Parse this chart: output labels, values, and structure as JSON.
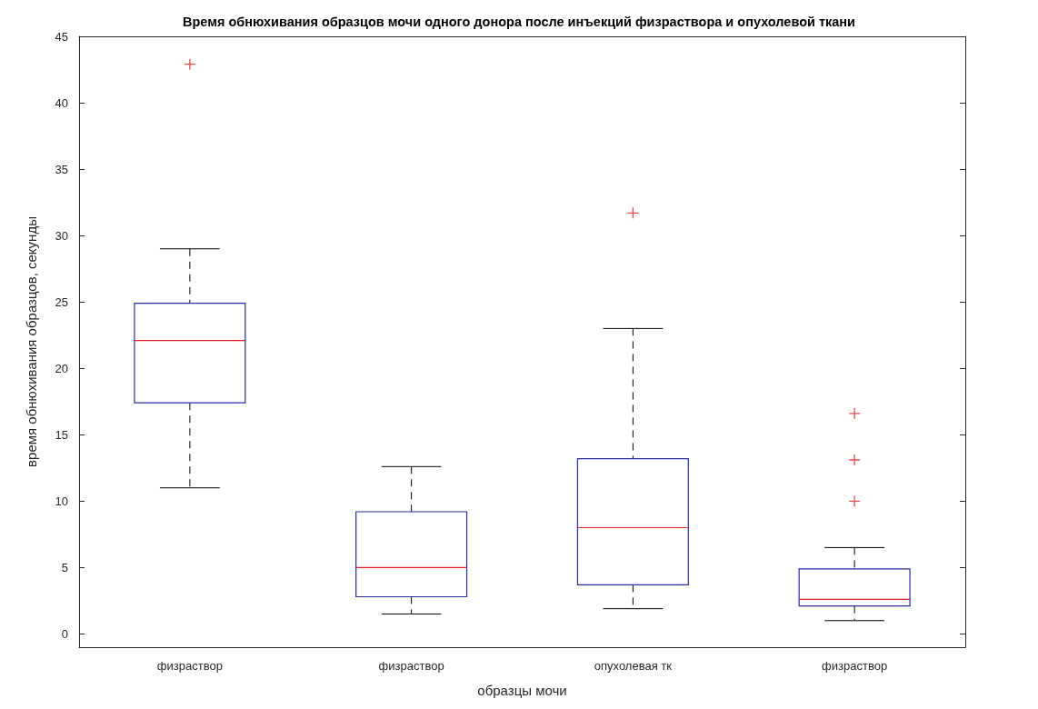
{
  "chart_data": {
    "type": "box",
    "title": "Время обнюхивания образцов мочи одного донора после инъекций физраствора и опухолевой ткани",
    "xlabel": "образцы мочи",
    "ylabel": "время обнюхивания образцов, секунды",
    "categories": [
      "физраствор",
      "физраствор",
      "опухолевая тк",
      "физраствор"
    ],
    "color": "#2b2ba8",
    "marker": "cross",
    "ylim": [
      -1,
      45
    ],
    "yticks": [
      0,
      5,
      10,
      15,
      20,
      25,
      30,
      35,
      40,
      45
    ],
    "grid": false,
    "boxes": [
      {
        "low": 11.0,
        "q1": 17.4,
        "median": 22.1,
        "q3": 24.9,
        "high": 29.0,
        "outliers": [
          42.9
        ]
      },
      {
        "low": 1.5,
        "q1": 2.8,
        "median": 5.0,
        "q3": 9.2,
        "high": 12.6
      },
      {
        "low": 1.9,
        "q1": 3.7,
        "median": 8.0,
        "q3": 13.2,
        "high": 23.0,
        "outliers": [
          31.7
        ]
      },
      {
        "low": 1.0,
        "q1": 2.1,
        "median": 2.6,
        "q3": 4.9,
        "high": 6.5,
        "outliers": [
          16.6,
          13.1,
          10.0
        ]
      }
    ]
  }
}
